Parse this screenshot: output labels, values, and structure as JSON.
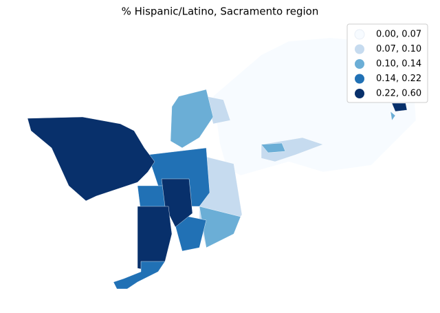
{
  "title": "% Hispanic/Latino, Sacramento region",
  "legend": {
    "items": [
      {
        "label": "0.00, 0.07",
        "color": "#f7fbff"
      },
      {
        "label": "0.07, 0.10",
        "color": "#c6dbef"
      },
      {
        "label": "0.10, 0.14",
        "color": "#6baed6"
      },
      {
        "label": "0.14, 0.22",
        "color": "#2171b5"
      },
      {
        "label": "0.22, 0.60",
        "color": "#08306b"
      }
    ]
  }
}
